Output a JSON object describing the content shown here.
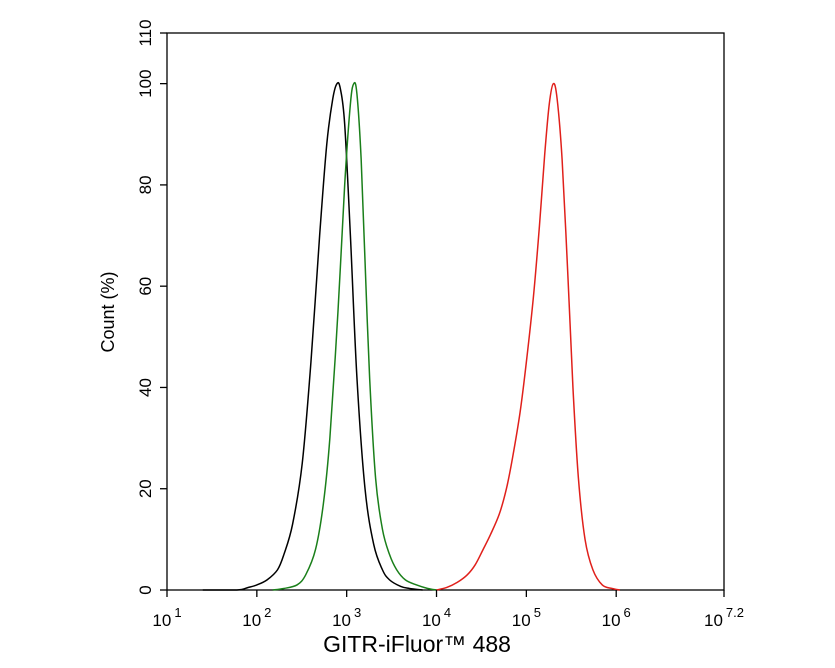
{
  "chart_data": {
    "type": "line",
    "title": "",
    "xlabel": "GITR-iFluor™ 488",
    "ylabel": "Count  (%)",
    "x_scale": "log10",
    "xlim": [
      10,
      15848931.92
    ],
    "ylim": [
      0,
      110
    ],
    "x_tick_labels": [
      {
        "base": "10",
        "exp": "1"
      },
      {
        "base": "10",
        "exp": "2"
      },
      {
        "base": "10",
        "exp": "3"
      },
      {
        "base": "10",
        "exp": "4"
      },
      {
        "base": "10",
        "exp": "5"
      },
      {
        "base": "10",
        "exp": "6"
      },
      {
        "base": "10",
        "exp": "7.2"
      }
    ],
    "y_ticks": [
      0,
      20,
      40,
      60,
      80,
      100,
      110
    ],
    "y_tick_labels": [
      "0",
      "20",
      "40",
      "60",
      "80",
      "100",
      "110"
    ],
    "grid": false,
    "legend": "none",
    "series": [
      {
        "color": "#000000",
        "x": [
          25,
          60,
          80,
          100,
          130,
          170,
          200,
          250,
          320,
          400,
          500,
          600,
          700,
          780,
          850,
          950,
          1100,
          1300,
          1600,
          2000,
          2500,
          3000,
          4000,
          5000,
          7000
        ],
        "y": [
          0,
          0,
          0.5,
          1,
          2,
          4,
          7,
          13,
          25,
          45,
          70,
          88,
          97,
          100,
          99,
          92,
          70,
          42,
          20,
          9,
          4,
          2,
          0.7,
          0.3,
          0
        ]
      },
      {
        "color": "#1a7f1a",
        "x": [
          150,
          200,
          280,
          350,
          450,
          550,
          650,
          800,
          950,
          1100,
          1200,
          1300,
          1450,
          1600,
          1800,
          2100,
          2500,
          3000,
          3600,
          4500,
          6000,
          8000,
          10000
        ],
        "y": [
          0,
          0.3,
          1,
          3,
          8,
          17,
          30,
          55,
          80,
          96,
          100,
          98,
          85,
          65,
          42,
          22,
          12,
          7,
          4,
          2,
          1,
          0.3,
          0
        ]
      },
      {
        "color": "#e0201b",
        "x": [
          10000,
          13000,
          17000,
          22000,
          27000,
          33000,
          40000,
          50000,
          60000,
          70000,
          85000,
          100000,
          120000,
          140000,
          160000,
          180000,
          200000,
          220000,
          250000,
          290000,
          330000,
          380000,
          450000,
          550000,
          700000,
          900000,
          1100000
        ],
        "y": [
          0,
          0.5,
          1.5,
          3,
          5,
          8,
          11,
          15,
          20,
          26,
          35,
          45,
          58,
          72,
          86,
          96,
          100,
          97,
          85,
          62,
          40,
          22,
          10,
          4,
          1,
          0.3,
          0
        ]
      }
    ]
  }
}
